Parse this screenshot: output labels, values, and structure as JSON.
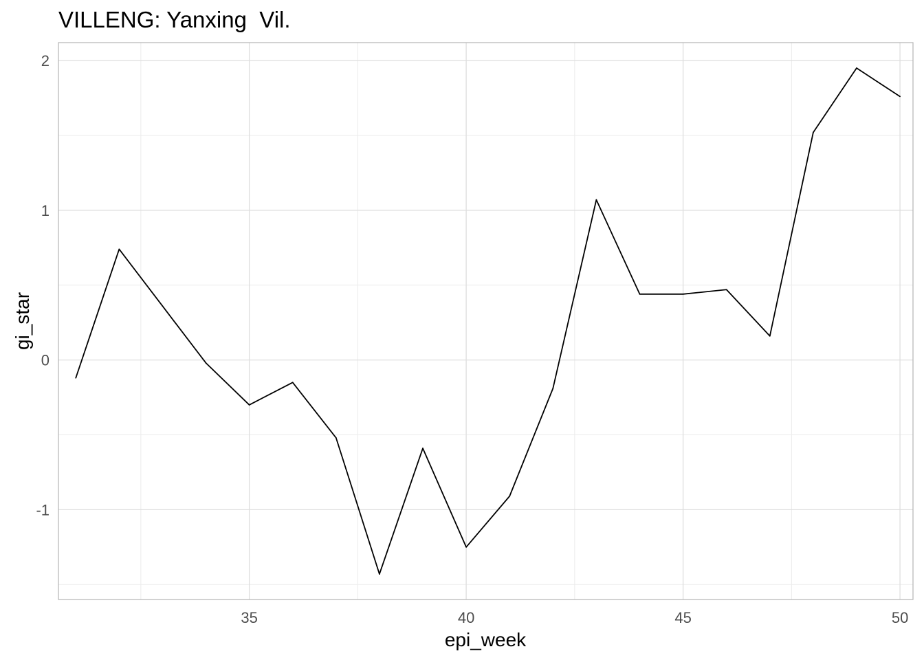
{
  "chart_data": {
    "type": "line",
    "title": "VILLENG: Yanxing  Vil.",
    "xlabel": "epi_week",
    "ylabel": "gi_star",
    "xlim": [
      30.6,
      50.3
    ],
    "ylim": [
      -1.6,
      2.12
    ],
    "x_ticks": [
      35,
      40,
      45,
      50
    ],
    "y_ticks": [
      -1,
      0,
      1,
      2
    ],
    "x_tick_labels": [
      "35",
      "40",
      "45",
      "50"
    ],
    "y_tick_labels": [
      "-1",
      "0",
      "1",
      "2"
    ],
    "grid": true,
    "series": [
      {
        "x": [
          31,
          32,
          33,
          34,
          35,
          36,
          37,
          38,
          39,
          40,
          41,
          42,
          43,
          44,
          45,
          46,
          47,
          48,
          49,
          50
        ],
        "values": [
          -0.12,
          0.74,
          0.36,
          -0.02,
          -0.3,
          -0.15,
          -0.52,
          -1.43,
          -0.59,
          -1.25,
          -0.91,
          -0.19,
          1.07,
          0.44,
          0.44,
          0.47,
          0.16,
          1.52,
          1.95,
          1.76
        ],
        "color": "#000000"
      }
    ]
  }
}
